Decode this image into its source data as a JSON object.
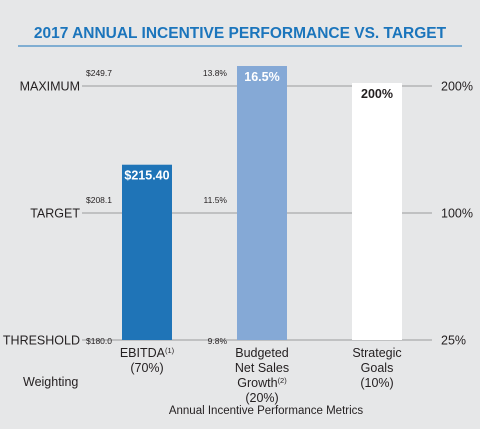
{
  "chart_data": {
    "type": "bar",
    "title": "2017 ANNUAL INCENTIVE PERFORMANCE VS. TARGET",
    "xlabel": "Annual Incentive Performance Metrics",
    "weighting_label": "Weighting",
    "levels": [
      {
        "name": "THRESHOLD",
        "payout": "25%",
        "fraction": 0
      },
      {
        "name": "TARGET",
        "payout": "100%",
        "fraction": 0.5
      },
      {
        "name": "MAXIMUM",
        "payout": "200%",
        "fraction": 1
      }
    ],
    "categories": [
      {
        "lines": [
          "EBITDA",
          "(70%)"
        ],
        "superscript": "(1)",
        "color": "#1f74b7",
        "label_color": "#ffffff",
        "value_label": "$215.40",
        "value": 215.4,
        "scale": {
          "threshold": "$180.0",
          "target": "$208.1",
          "maximum": "$249.7"
        },
        "scale_values": [
          180.0,
          208.1,
          249.7
        ]
      },
      {
        "lines": [
          "Budgeted",
          "Net Sales",
          "Growth",
          "(20%)"
        ],
        "superscript": "(2)",
        "color": "#85a9d6",
        "label_color": "#ffffff",
        "value_label": "16.5%",
        "value": 16.5,
        "scale": {
          "threshold": "9.8%",
          "target": "11.5%",
          "maximum": "13.8%"
        },
        "scale_values": [
          9.8,
          11.5,
          13.8
        ]
      },
      {
        "lines": [
          "Strategic",
          "Goals",
          "(10%)"
        ],
        "superscript": "",
        "color": "#ffffff",
        "label_color": "#231f20",
        "value_label": "200%",
        "value": 200,
        "scale": {
          "threshold": "",
          "target": "",
          "maximum": ""
        },
        "scale_values": [
          25,
          100,
          200
        ]
      }
    ]
  }
}
